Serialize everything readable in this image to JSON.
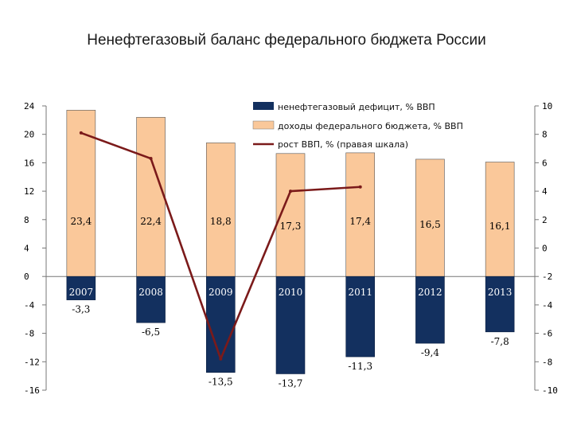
{
  "chart_data": {
    "type": "bar",
    "title": "Ненефтегазовый баланс федерального бюджета России",
    "categories": [
      "2007",
      "2008",
      "2009",
      "2010",
      "2011",
      "2012",
      "2013"
    ],
    "series": [
      {
        "name": "ненефтегазовый дефицит, % ВВП",
        "type": "bar",
        "axis": "left",
        "color": "#13305f",
        "values": [
          -3.3,
          -6.5,
          -13.5,
          -13.7,
          -11.3,
          -9.4,
          -7.8
        ],
        "labels": [
          "-3,3",
          "-6,5",
          "-13,5",
          "-13,7",
          "-11,3",
          "-9,4",
          "-7,8"
        ]
      },
      {
        "name": "доходы федерального бюджета, % ВВП",
        "type": "bar",
        "axis": "left",
        "color": "#fac89a",
        "values": [
          23.4,
          22.4,
          18.8,
          17.3,
          17.4,
          16.5,
          16.1
        ],
        "labels": [
          "23,4",
          "22,4",
          "18,8",
          "17,3",
          "17,4",
          "16,5",
          "16,1"
        ]
      },
      {
        "name": "рост ВВП, % (правая шкала)",
        "type": "line",
        "axis": "right",
        "color": "#7b1a1a",
        "values": [
          8.1,
          6.3,
          -7.8,
          4.0,
          4.3,
          null,
          null
        ]
      }
    ],
    "y_left": {
      "min": -16,
      "max": 24,
      "ticks": [
        "-16",
        "-12",
        "-8",
        "-4",
        "0",
        "4",
        "8",
        "12",
        "16",
        "20",
        "24"
      ]
    },
    "y_right": {
      "min": -10,
      "max": 10,
      "ticks": [
        "-10",
        "-8",
        "-6",
        "-4",
        "-2",
        "0",
        "2",
        "4",
        "6",
        "8",
        "10"
      ]
    },
    "grid": false,
    "legend_position": "top-right"
  }
}
